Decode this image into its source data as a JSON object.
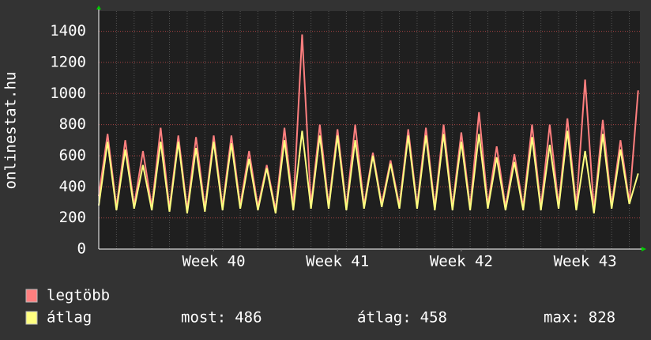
{
  "chart_data": {
    "type": "line",
    "ylabel": "onlinestat.hu",
    "x": [
      0,
      0.5,
      1,
      1.5,
      2,
      2.5,
      3,
      3.5,
      4,
      4.5,
      5,
      5.5,
      6,
      6.5,
      7,
      7.5,
      8,
      8.5,
      9,
      9.5,
      10,
      10.5,
      11,
      11.5,
      12,
      12.5,
      13,
      13.5,
      14,
      14.5,
      15,
      15.5,
      16,
      16.5,
      17,
      17.5,
      18,
      18.5,
      19,
      19.5,
      20,
      20.5,
      21,
      21.5,
      22,
      22.5,
      23,
      23.5,
      24,
      24.5,
      25,
      25.5,
      26,
      26.5,
      27,
      27.5,
      28,
      28.5,
      29,
      29.5,
      30,
      30.5
    ],
    "series": [
      {
        "name": "legtöbb",
        "color": "#ff7f7f",
        "values": [
          340,
          740,
          270,
          700,
          280,
          630,
          270,
          780,
          260,
          730,
          250,
          720,
          260,
          730,
          270,
          730,
          280,
          630,
          270,
          540,
          250,
          780,
          270,
          1380,
          280,
          800,
          280,
          770,
          270,
          800,
          280,
          620,
          290,
          570,
          280,
          770,
          280,
          780,
          270,
          800,
          270,
          750,
          270,
          880,
          280,
          660,
          270,
          610,
          270,
          800,
          270,
          800,
          280,
          840,
          270,
          1090,
          250,
          830,
          280,
          700,
          300,
          1020
        ]
      },
      {
        "name": "átlag",
        "color": "#ffff80",
        "values": [
          280,
          690,
          250,
          640,
          260,
          540,
          250,
          690,
          240,
          690,
          230,
          650,
          240,
          690,
          250,
          680,
          260,
          580,
          250,
          520,
          230,
          700,
          250,
          760,
          260,
          730,
          260,
          730,
          250,
          700,
          260,
          600,
          270,
          550,
          260,
          730,
          260,
          730,
          250,
          740,
          250,
          690,
          250,
          740,
          260,
          590,
          250,
          560,
          250,
          720,
          250,
          670,
          260,
          760,
          250,
          630,
          230,
          740,
          260,
          640,
          290,
          486
        ]
      }
    ],
    "xlim": [
      0,
      30.6
    ],
    "xticks": [
      {
        "value": 6.5,
        "label": "Week 40"
      },
      {
        "value": 13.5,
        "label": "Week 41"
      },
      {
        "value": 20.5,
        "label": "Week 42"
      },
      {
        "value": 27.5,
        "label": "Week 43"
      }
    ],
    "ylim": [
      0,
      1530
    ],
    "yticks": [
      0,
      200,
      400,
      600,
      800,
      1000,
      1200,
      1400
    ],
    "grid": true,
    "stats": [
      {
        "label": "most:",
        "value": 486
      },
      {
        "label": "átlag:",
        "value": 458
      },
      {
        "label": "max:",
        "value": 828
      }
    ]
  }
}
